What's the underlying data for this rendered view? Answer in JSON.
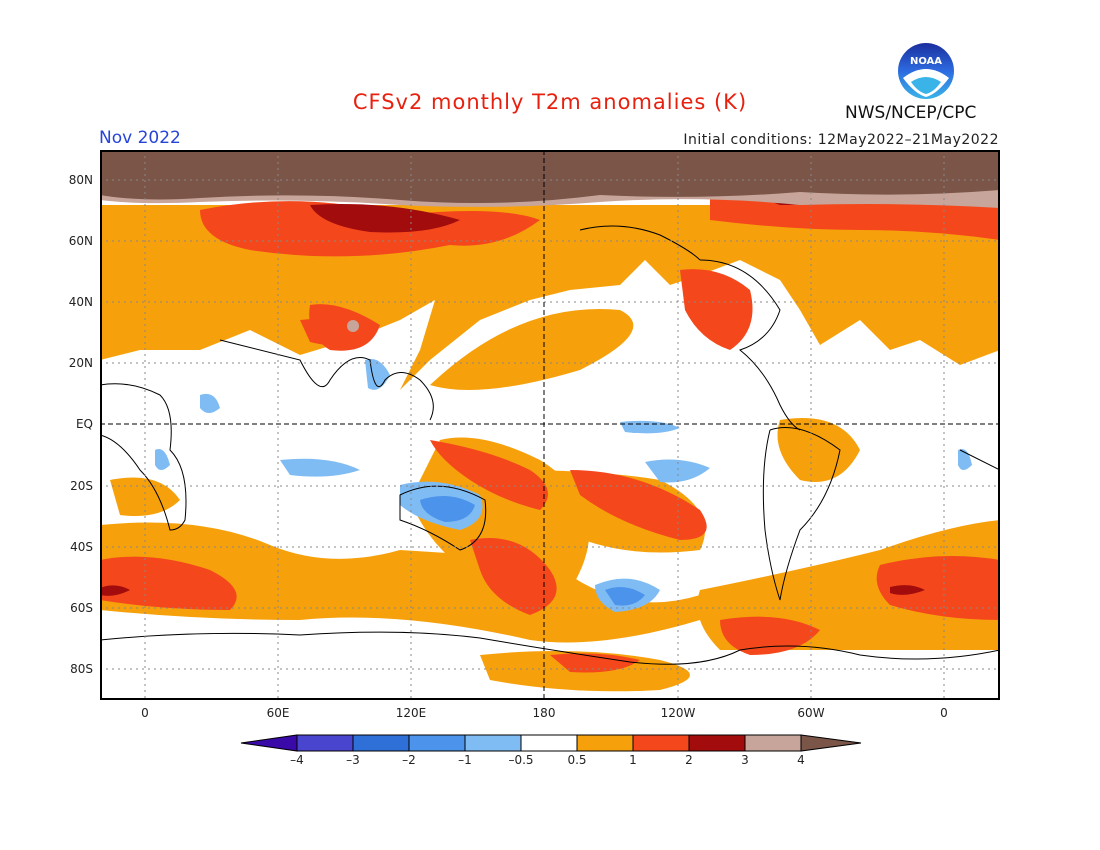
{
  "title": "CFSv2 monthly T2m anomalies (K)",
  "month": "Nov 2022",
  "initial_conditions": "Initial conditions: 12May2022–21May2022",
  "agency": "NWS/NCEP/CPC",
  "logo_text": "NOAA",
  "lat_labels": [
    "80N",
    "60N",
    "40N",
    "20N",
    "EQ",
    "20S",
    "40S",
    "60S",
    "80S"
  ],
  "lon_labels": [
    "0",
    "60E",
    "120E",
    "180",
    "120W",
    "60W",
    "0"
  ],
  "colorbar": {
    "labels": [
      "–4",
      "–3",
      "–2",
      "–1",
      "–0.5",
      "0.5",
      "1",
      "2",
      "3",
      "4"
    ],
    "colors": [
      "#3a0aa8",
      "#4a45cf",
      "#2f6fd8",
      "#4c93ec",
      "#80bcf4",
      "#ffffff",
      "#f6a10c",
      "#f4481c",
      "#a30c0c",
      "#c8a59a",
      "#7a5548"
    ]
  }
}
